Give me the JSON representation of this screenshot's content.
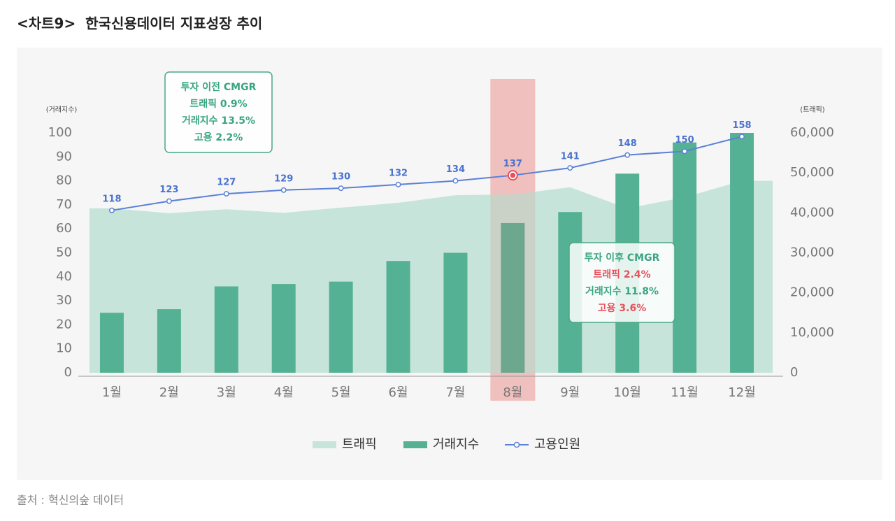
{
  "chart_data": {
    "type": "combo",
    "title": "<차트9>  한국신용데이터 지표성장 추이",
    "source": "출처 : 혁신의숲 데이터",
    "y_label": "(거래지수)",
    "y2_label": "(트래픽)",
    "categories": [
      "1월",
      "2월",
      "3월",
      "4월",
      "5월",
      "6월",
      "7월",
      "8월",
      "9월",
      "10월",
      "11월",
      "12월"
    ],
    "highlight_category": "8월",
    "series": [
      {
        "name": "트래픽",
        "type": "area",
        "axis": "y2",
        "color": "#c6e4da",
        "values": [
          41100,
          39900,
          40900,
          40000,
          41300,
          42500,
          44400,
          44600,
          46400,
          41100,
          43900,
          48000
        ]
      },
      {
        "name": "거래지수",
        "type": "bar",
        "axis": "y",
        "color": "#55b194",
        "values": [
          25,
          26.5,
          36,
          37,
          38,
          46.6,
          50,
          62.4,
          67,
          83,
          96,
          100
        ]
      },
      {
        "name": "고용인원",
        "type": "line",
        "axis": "y3",
        "color": "#5b80d8",
        "values": [
          118,
          123,
          127,
          129,
          130,
          132,
          134,
          137,
          141,
          148,
          150,
          158
        ]
      }
    ],
    "ylim": [
      0,
      100
    ],
    "yticks": [
      0,
      10,
      20,
      30,
      40,
      50,
      60,
      70,
      80,
      90,
      100
    ],
    "y2lim": [
      0,
      60000
    ],
    "y2ticks": [
      0,
      {
        "value": 10000,
        "label": "10,000"
      },
      {
        "value": 20000,
        "label": "20,000"
      },
      {
        "value": 30000,
        "label": "30,000"
      },
      {
        "value": 40000,
        "label": "40,000"
      },
      {
        "value": 50000,
        "label": "50,000"
      },
      {
        "value": 60000,
        "label": "60,000"
      }
    ],
    "y3lim": [
      30,
      160
    ],
    "annotations": [
      {
        "lines": [
          {
            "text": "투자 이전 CMGR",
            "color": "#3aa581"
          },
          {
            "text": "트래픽 0.9%",
            "color": "#3aa581"
          },
          {
            "text": "거래지수 13.5%",
            "color": "#3aa581"
          },
          {
            "text": "고용 2.2%",
            "color": "#3aa581"
          }
        ]
      },
      {
        "lines": [
          {
            "text": "투자 이후 CMGR",
            "color": "#3aa581"
          },
          {
            "text": "트래픽 2.4%",
            "color": "#e8505b"
          },
          {
            "text": "거래지수 11.8%",
            "color": "#3aa581"
          },
          {
            "text": "고용 3.6%",
            "color": "#e8505b"
          }
        ]
      }
    ]
  }
}
